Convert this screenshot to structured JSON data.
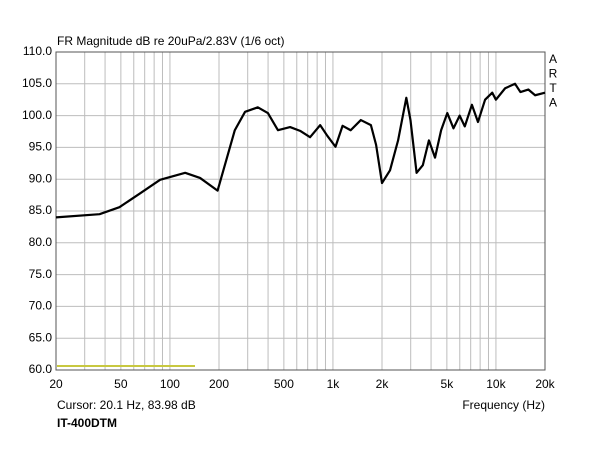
{
  "chart_data": {
    "type": "line",
    "title": "FR Magnitude dB re 20uPa/2.83V (1/6 oct)",
    "side_label": [
      "A",
      "R",
      "T",
      "A"
    ],
    "cursor_text": "Cursor: 20.1 Hz, 83.98 dB",
    "xlabel": "Frequency (Hz)",
    "footer": "IT-400DTM",
    "x_log": true,
    "grid": true,
    "xlim": [
      20,
      20000
    ],
    "ylim": [
      60,
      110
    ],
    "xticks": [
      20,
      50,
      100,
      200,
      500,
      {
        "value": 1000,
        "label": "1k"
      },
      {
        "value": 2000,
        "label": "2k"
      },
      {
        "value": 5000,
        "label": "5k"
      },
      {
        "value": 10000,
        "label": "10k"
      },
      {
        "value": 20000,
        "label": "20k"
      }
    ],
    "xgrid": [
      30,
      40,
      60,
      70,
      80,
      90,
      300,
      400,
      600,
      700,
      800,
      900,
      3000,
      4000,
      6000,
      7000,
      8000,
      9000
    ],
    "yticks": [
      {
        "value": 60,
        "label": "60.0"
      },
      {
        "value": 65,
        "label": "65.0"
      },
      {
        "value": 70,
        "label": "70.0"
      },
      {
        "value": 75,
        "label": "75.0"
      },
      {
        "value": 80,
        "label": "80.0"
      },
      {
        "value": 85,
        "label": "85.0"
      },
      {
        "value": 90,
        "label": "90.0"
      },
      {
        "value": 95,
        "label": "95.0"
      },
      {
        "value": 100,
        "label": "100.0"
      },
      {
        "value": 105,
        "label": "105.0"
      },
      {
        "value": 110,
        "label": "110.0"
      }
    ],
    "series": [
      {
        "color": "#000000",
        "x": [
          20,
          37,
          49,
          65,
          87,
          124,
          153,
          196,
          250,
          289,
          346,
          399,
          460,
          546,
          629,
          724,
          835,
          925,
          1037,
          1146,
          1285,
          1483,
          1710,
          1840,
          2000,
          2240,
          2510,
          2820,
          2990,
          3260,
          3560,
          3880,
          4230,
          4610,
          5030,
          5490,
          5990,
          6440,
          7120,
          7760,
          8580,
          9490,
          10000,
          11390,
          13100,
          14130,
          15800,
          17400,
          20000
        ],
        "values": [
          84.0,
          84.5,
          85.6,
          87.7,
          89.9,
          91.0,
          90.2,
          88.2,
          97.7,
          100.6,
          101.3,
          100.4,
          97.7,
          98.2,
          97.6,
          96.6,
          98.5,
          96.8,
          95.1,
          98.4,
          97.7,
          99.3,
          98.5,
          95.4,
          89.4,
          91.4,
          96.1,
          102.8,
          99.3,
          91.0,
          92.2,
          96.1,
          93.4,
          97.7,
          100.4,
          98.0,
          100.0,
          98.3,
          101.7,
          99.0,
          102.5,
          103.6,
          102.5,
          104.3,
          105.0,
          103.7,
          104.1,
          103.2,
          103.6
        ]
      }
    ]
  }
}
